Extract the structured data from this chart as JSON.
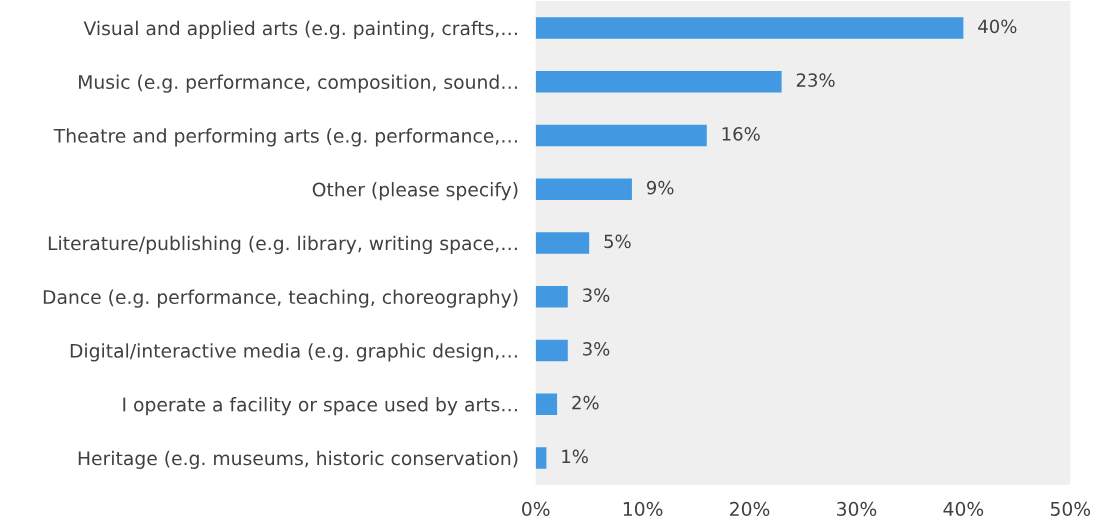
{
  "chart_data": {
    "type": "bar",
    "orientation": "horizontal",
    "categories": [
      "Visual and applied arts (e.g. painting, crafts,…",
      "Music (e.g. performance, composition, sound…",
      "Theatre and performing arts (e.g. performance,…",
      "Other (please specify)",
      "Literature/publishing (e.g. library, writing space,…",
      "Dance (e.g. performance, teaching, choreography)",
      "Digital/interactive media (e.g. graphic design,…",
      "I operate a facility or space used by arts…",
      "Heritage (e.g. museums, historic conservation)"
    ],
    "values": [
      40,
      23,
      16,
      9,
      5,
      3,
      3,
      2,
      1
    ],
    "value_labels": [
      "40%",
      "23%",
      "16%",
      "9%",
      "5%",
      "3%",
      "3%",
      "2%",
      "1%"
    ],
    "color": "#4299e1",
    "xlim": [
      0,
      50
    ],
    "xticks": [
      {
        "value": 0,
        "label": "0%"
      },
      {
        "value": 10,
        "label": "10%"
      },
      {
        "value": 20,
        "label": "20%"
      },
      {
        "value": 30,
        "label": "30%"
      },
      {
        "value": 40,
        "label": "40%"
      },
      {
        "value": 50,
        "label": "50%"
      }
    ],
    "grid": false,
    "legend": false
  }
}
